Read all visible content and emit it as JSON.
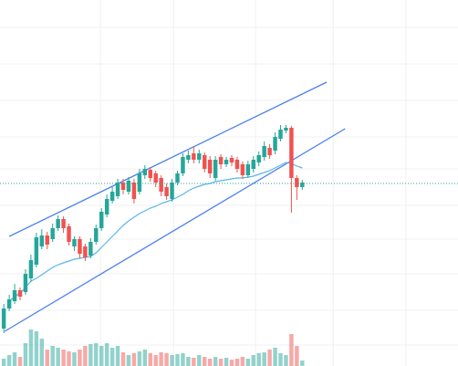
{
  "chart_data": {
    "type": "candlestick",
    "xlim": [
      -0.7,
      83.7
    ],
    "ylim": [
      0,
      401
    ],
    "xticks": [
      17.8,
      31.3,
      46.4,
      60.7,
      74.1
    ],
    "yticks": [
      23,
      61,
      101,
      139,
      176,
      216,
      251,
      291,
      331,
      371
    ],
    "grid": true,
    "up_color": "#26a69a",
    "down_color": "#ef5350",
    "open": [
      41,
      63,
      71,
      83,
      81,
      96,
      111,
      131,
      143,
      139,
      151,
      161,
      153,
      131,
      139,
      131,
      121,
      136,
      151,
      166,
      181,
      186,
      201,
      191,
      201,
      191,
      209,
      215,
      211,
      206,
      196,
      183,
      201,
      211,
      226,
      233,
      226,
      231,
      226,
      206,
      229,
      221,
      228,
      226,
      221,
      209,
      216,
      223,
      229,
      239,
      236,
      249,
      258,
      261,
      206,
      196
    ],
    "high": [
      68,
      78,
      90,
      86,
      106,
      122,
      146,
      150,
      147,
      156,
      165,
      164,
      156,
      142,
      142,
      134,
      140,
      155,
      173,
      188,
      196,
      205,
      205,
      207,
      205,
      216,
      220,
      218,
      214,
      209,
      200,
      205,
      214,
      233,
      236,
      240,
      237,
      234,
      230,
      230,
      232,
      229,
      231,
      229,
      224,
      225,
      230,
      235,
      246,
      243,
      256,
      264,
      264,
      263,
      209,
      204
    ],
    "low": [
      36,
      60,
      68,
      72,
      78,
      92,
      108,
      128,
      128,
      136,
      148,
      146,
      132,
      126,
      118,
      115,
      118,
      133,
      148,
      163,
      178,
      183,
      188,
      188,
      178,
      188,
      205,
      202,
      196,
      186,
      182,
      180,
      198,
      208,
      222,
      222,
      222,
      212,
      206,
      203,
      216,
      218,
      219,
      212,
      205,
      206,
      212,
      219,
      225,
      227,
      232,
      246,
      255,
      168,
      182,
      193
    ],
    "close": [
      63,
      73,
      83,
      76,
      101,
      116,
      141,
      143,
      133,
      151,
      161,
      151,
      136,
      139,
      123,
      119,
      136,
      151,
      169,
      183,
      191,
      201,
      193,
      203,
      183,
      211,
      216,
      206,
      201,
      191,
      186,
      201,
      211,
      229,
      231,
      226,
      233,
      216,
      211,
      226,
      221,
      226,
      223,
      216,
      209,
      221,
      226,
      231,
      241,
      231,
      251,
      259,
      261,
      206,
      196,
      201
    ],
    "volume": [
      8,
      12,
      15,
      10,
      25,
      40,
      38,
      30,
      18,
      22,
      20,
      18,
      16,
      15,
      18,
      22,
      24,
      25,
      22,
      25,
      20,
      22,
      15,
      12,
      14,
      16,
      18,
      14,
      12,
      15,
      14,
      12,
      13,
      14,
      10,
      9,
      12,
      10,
      8,
      10,
      8,
      9,
      7,
      8,
      10,
      8,
      12,
      14,
      15,
      18,
      20,
      14,
      12,
      35,
      22,
      6
    ],
    "moving_average": {
      "color": "#5bb6e8",
      "values": [
        null,
        71,
        76,
        80,
        86,
        93,
        96,
        100,
        104,
        108,
        111,
        113,
        115,
        117,
        118,
        119,
        120,
        124,
        130,
        136,
        142,
        148,
        154,
        159,
        163,
        167,
        170,
        173,
        175,
        178,
        180,
        182,
        185,
        188,
        192,
        195,
        197,
        199,
        200,
        202,
        203,
        204,
        205,
        206,
        206,
        207,
        208,
        210,
        212,
        214,
        217,
        220,
        223,
        222,
        219,
        217
      ]
    },
    "trendlines": [
      {
        "color": "#4a7ff0",
        "points": [
          [
            1,
            142
          ],
          [
            59.5,
            311
          ]
        ]
      },
      {
        "color": "#4a7ff0",
        "points": [
          [
            0.17,
            38
          ],
          [
            62.9,
            260
          ]
        ]
      }
    ],
    "price_line": {
      "value": 200,
      "color": "#26a69a"
    }
  }
}
